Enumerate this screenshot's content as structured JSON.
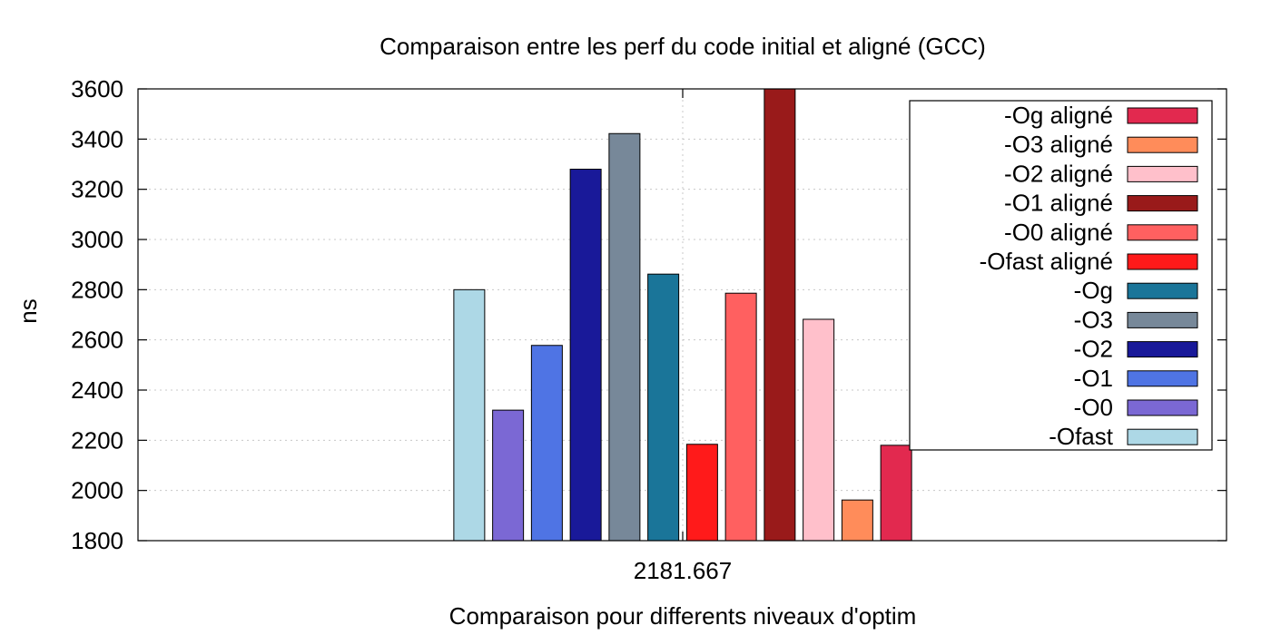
{
  "chart_data": {
    "type": "bar",
    "title": "Comparaison entre les perf du code initial et aligné (GCC)",
    "xlabel": "Comparaison pour differents niveaux d'optim",
    "ylabel": "ns",
    "ylim": [
      1800,
      3600
    ],
    "yticks": [
      1800,
      2000,
      2200,
      2400,
      2600,
      2800,
      3000,
      3200,
      3400,
      3600
    ],
    "categories": [
      "2181.667"
    ],
    "grid": true,
    "legend_position": "top-right",
    "series": [
      {
        "name": "-Ofast",
        "color": "#add8e6",
        "values": [
          2800
        ]
      },
      {
        "name": "-O0",
        "color": "#7b68d4",
        "values": [
          2320
        ]
      },
      {
        "name": "-O1",
        "color": "#4f74e4",
        "values": [
          2578
        ]
      },
      {
        "name": "-O2",
        "color": "#191999",
        "values": [
          3280
        ]
      },
      {
        "name": "-O3",
        "color": "#778899",
        "values": [
          3422
        ]
      },
      {
        "name": "-Og",
        "color": "#1a7599",
        "values": [
          2862
        ]
      },
      {
        "name": "-Ofast aligné",
        "color": "#ff1a1a",
        "values": [
          2184
        ]
      },
      {
        "name": "-O0 aligné",
        "color": "#ff6060",
        "values": [
          2786
        ]
      },
      {
        "name": "-O1 aligné",
        "color": "#991a1a",
        "values": [
          3600
        ]
      },
      {
        "name": "-O2 aligné",
        "color": "#ffc0cb",
        "values": [
          2682
        ]
      },
      {
        "name": "-O3 aligné",
        "color": "#ff8c5a",
        "values": [
          1962
        ]
      },
      {
        "name": "-Og aligné",
        "color": "#e2294f",
        "values": [
          2180
        ]
      }
    ]
  }
}
